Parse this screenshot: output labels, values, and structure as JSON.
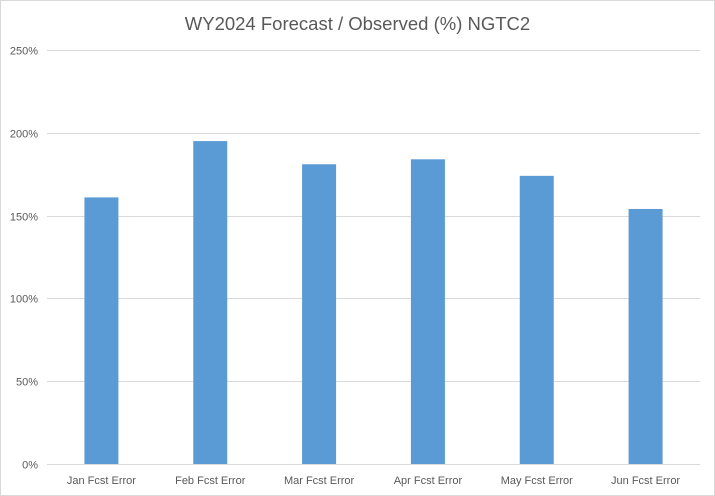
{
  "chart_data": {
    "type": "bar",
    "title": "WY2024 Forecast / Observed (%) NGTC2",
    "categories": [
      "Jan Fcst Error",
      "Feb Fcst Error",
      "Mar Fcst Error",
      "Apr Fcst Error",
      "May Fcst Error",
      "Jun Fcst Error"
    ],
    "values": [
      161,
      195,
      181,
      184,
      174,
      154
    ],
    "value_unit": "%",
    "ylim": [
      0,
      250
    ],
    "yticks": [
      0,
      50,
      100,
      150,
      200,
      250
    ],
    "ytick_labels": [
      "0%",
      "50%",
      "100%",
      "150%",
      "200%",
      "250%"
    ],
    "xlabel": "",
    "ylabel": "",
    "grid": true,
    "legend": "none",
    "colors": {
      "bar": "#5b9bd5",
      "grid": "#d9d9d9",
      "text": "#595959"
    }
  }
}
